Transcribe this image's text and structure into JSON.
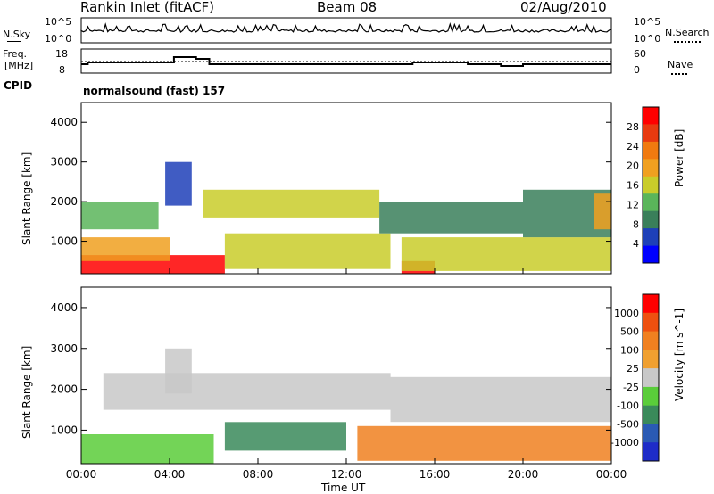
{
  "header": {
    "title": "Rankin Inlet (fitACF)",
    "beam": "Beam 08",
    "date": "02/Aug/2010"
  },
  "panels": {
    "nsky": {
      "label": "N.Sky",
      "ticks": [
        "10^5",
        "10^0"
      ],
      "right_label": "N.Search",
      "right_ticks": [
        "10^5",
        "10^0"
      ]
    },
    "freq": {
      "label_top": "Freq.",
      "label_bottom": "[MHz]",
      "ticks": [
        "18",
        "8"
      ],
      "right_label": "Nave",
      "right_ticks": [
        "60",
        "0"
      ]
    },
    "cpid": {
      "label": "CPID",
      "value": "normalsound (fast)  157"
    }
  },
  "colors": {
    "power": [
      "#0000ff",
      "#1e40b8",
      "#3a7f5a",
      "#5ab55a",
      "#c9cc2a",
      "#f0a020",
      "#f07a10",
      "#e83a10",
      "#ff0000"
    ],
    "velocity": [
      "#1e2cc8",
      "#2a5ab4",
      "#3a8a5a",
      "#5acd3a",
      "#c8c8c8",
      "#f0a030",
      "#f08020",
      "#ee5010",
      "#ff0000"
    ],
    "ground_scatter": "#bdbdbd"
  },
  "chart_data": [
    {
      "type": "heatmap",
      "title": "",
      "ylabel": "Slant Range [km]",
      "yticks": [
        "4000",
        "3000",
        "2000",
        "1000"
      ],
      "ylim": [
        180,
        4500
      ],
      "xlim": [
        0,
        24
      ],
      "colorbar_label": "Power [dB]",
      "colorbar_ticks": [
        "28",
        "24",
        "20",
        "16",
        "12",
        "8",
        "4"
      ],
      "colorbar_range": [
        0,
        32
      ],
      "regions": [
        {
          "t0": 0.0,
          "t1": 6.5,
          "r0": 180,
          "r1": 650,
          "level": 30
        },
        {
          "t0": 14.5,
          "t1": 16.0,
          "r0": 180,
          "r1": 500,
          "level": 29
        },
        {
          "t0": 0.0,
          "t1": 4.0,
          "r0": 500,
          "r1": 1100,
          "level": 18
        },
        {
          "t0": 6.5,
          "t1": 14.0,
          "r0": 300,
          "r1": 1200,
          "level": 16
        },
        {
          "t0": 0.0,
          "t1": 3.5,
          "r0": 1300,
          "r1": 2000,
          "level": 14
        },
        {
          "t0": 5.5,
          "t1": 13.5,
          "r0": 1600,
          "r1": 2300,
          "level": 15
        },
        {
          "t0": 13.5,
          "t1": 20.0,
          "r0": 1200,
          "r1": 2000,
          "level": 10
        },
        {
          "t0": 14.5,
          "t1": 24.0,
          "r0": 250,
          "r1": 1100,
          "level": 17
        },
        {
          "t0": 20.0,
          "t1": 24.0,
          "r0": 1100,
          "r1": 2300,
          "level": 9
        },
        {
          "t0": 3.8,
          "t1": 5.0,
          "r0": 1900,
          "r1": 3000,
          "level": 7
        },
        {
          "t0": 23.2,
          "t1": 24.0,
          "r0": 1300,
          "r1": 2200,
          "level": 19
        }
      ]
    },
    {
      "type": "heatmap",
      "title": "",
      "ylabel": "Slant Range [km]",
      "yticks": [
        "4000",
        "3000",
        "2000",
        "1000"
      ],
      "ylim": [
        180,
        4500
      ],
      "xlim": [
        0,
        24
      ],
      "xlabel": "Time UT",
      "xticks": [
        "00:00",
        "04:00",
        "08:00",
        "12:00",
        "16:00",
        "20:00",
        "00:00"
      ],
      "colorbar_label": "Velocity [m s^-1]",
      "colorbar_ticks": [
        "1000",
        "500",
        "100",
        "25",
        "-25",
        "-100",
        "-500",
        "-1000"
      ],
      "regions": [
        {
          "t0": 0.0,
          "t1": 6.0,
          "r0": 180,
          "r1": 900,
          "level": 3
        },
        {
          "t0": 6.5,
          "t1": 12.0,
          "r0": 500,
          "r1": 1200,
          "level": 2
        },
        {
          "t0": 1.0,
          "t1": 14.0,
          "r0": 1500,
          "r1": 2400,
          "level": 4
        },
        {
          "t0": 14.0,
          "t1": 24.0,
          "r0": 1200,
          "r1": 2300,
          "level": 4
        },
        {
          "t0": 12.5,
          "t1": 24.0,
          "r0": 250,
          "r1": 1100,
          "level": 6
        },
        {
          "t0": 3.8,
          "t1": 5.0,
          "r0": 1900,
          "r1": 3000,
          "level": 4
        }
      ]
    }
  ]
}
